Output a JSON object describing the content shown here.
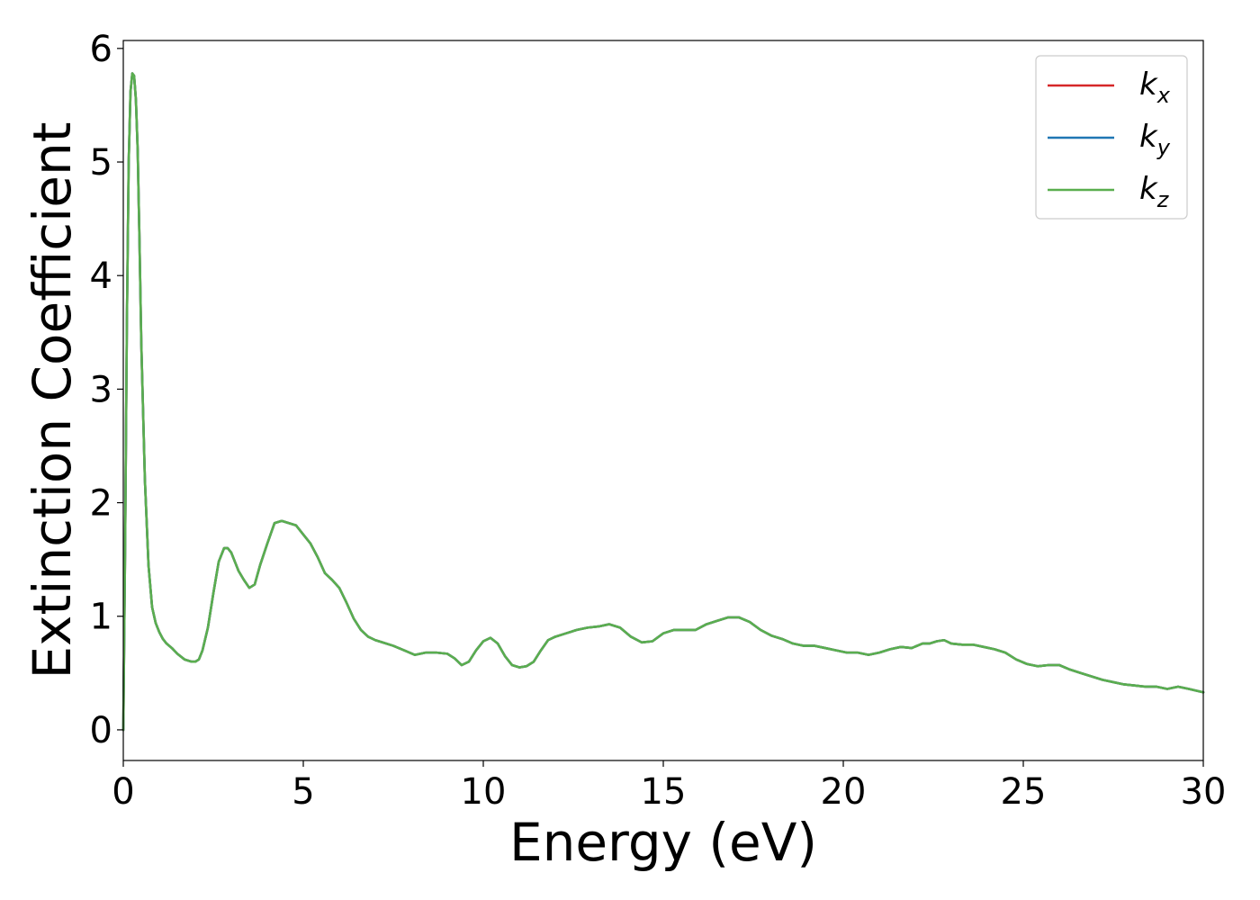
{
  "chart_data": {
    "type": "line",
    "title": "",
    "xlabel": "Energy (eV)",
    "ylabel": "Extinction Coefficient",
    "xlim": [
      0,
      30
    ],
    "ylim": [
      -0.27,
      6.07
    ],
    "x_ticks": [
      0,
      5,
      10,
      15,
      20,
      25,
      30
    ],
    "y_ticks": [
      0,
      1,
      2,
      3,
      4,
      5,
      6
    ],
    "x_tick_labels": [
      "0",
      "5",
      "10",
      "15",
      "20",
      "25",
      "30"
    ],
    "y_tick_labels": [
      "0",
      "1",
      "2",
      "3",
      "4",
      "5",
      "6"
    ],
    "grid": false,
    "legend_position": "upper-right",
    "colors": {
      "kx": "#d62728",
      "ky": "#1f77b4",
      "kz": "#5aae4f"
    },
    "x": [
      0.0,
      0.05,
      0.1,
      0.15,
      0.2,
      0.25,
      0.3,
      0.35,
      0.4,
      0.45,
      0.5,
      0.6,
      0.7,
      0.8,
      0.9,
      1.0,
      1.1,
      1.2,
      1.35,
      1.5,
      1.7,
      1.9,
      2.0,
      2.1,
      2.2,
      2.35,
      2.5,
      2.65,
      2.8,
      2.9,
      3.0,
      3.1,
      3.2,
      3.35,
      3.5,
      3.65,
      3.8,
      4.0,
      4.2,
      4.4,
      4.6,
      4.8,
      5.0,
      5.2,
      5.4,
      5.6,
      5.8,
      6.0,
      6.2,
      6.4,
      6.6,
      6.8,
      7.0,
      7.2,
      7.5,
      7.8,
      8.1,
      8.4,
      8.7,
      9.0,
      9.2,
      9.4,
      9.6,
      9.8,
      10.0,
      10.2,
      10.4,
      10.6,
      10.8,
      11.0,
      11.2,
      11.4,
      11.6,
      11.8,
      12.0,
      12.3,
      12.6,
      12.9,
      13.2,
      13.5,
      13.8,
      14.1,
      14.4,
      14.7,
      15.0,
      15.3,
      15.6,
      15.9,
      16.2,
      16.5,
      16.8,
      17.1,
      17.4,
      17.7,
      18.0,
      18.3,
      18.6,
      18.9,
      19.2,
      19.5,
      19.8,
      20.1,
      20.4,
      20.7,
      21.0,
      21.3,
      21.6,
      21.9,
      22.2,
      22.4,
      22.6,
      22.8,
      23.0,
      23.3,
      23.6,
      23.9,
      24.2,
      24.5,
      24.8,
      25.1,
      25.4,
      25.7,
      26.0,
      26.3,
      26.6,
      26.9,
      27.2,
      27.5,
      27.8,
      28.1,
      28.4,
      28.7,
      29.0,
      29.3,
      29.6,
      30.0
    ],
    "series": [
      {
        "name": "k_x",
        "values": [
          0.0,
          1.6,
          3.6,
          5.0,
          5.62,
          5.78,
          5.76,
          5.55,
          5.1,
          4.3,
          3.4,
          2.2,
          1.45,
          1.08,
          0.94,
          0.86,
          0.8,
          0.76,
          0.72,
          0.67,
          0.62,
          0.6,
          0.6,
          0.62,
          0.7,
          0.9,
          1.2,
          1.48,
          1.6,
          1.6,
          1.56,
          1.48,
          1.4,
          1.32,
          1.25,
          1.28,
          1.45,
          1.64,
          1.82,
          1.84,
          1.82,
          1.8,
          1.72,
          1.64,
          1.52,
          1.38,
          1.32,
          1.25,
          1.12,
          0.98,
          0.88,
          0.82,
          0.79,
          0.77,
          0.74,
          0.7,
          0.66,
          0.68,
          0.68,
          0.67,
          0.63,
          0.57,
          0.6,
          0.7,
          0.78,
          0.81,
          0.76,
          0.65,
          0.57,
          0.55,
          0.56,
          0.6,
          0.7,
          0.79,
          0.82,
          0.85,
          0.88,
          0.9,
          0.91,
          0.93,
          0.9,
          0.82,
          0.77,
          0.78,
          0.85,
          0.88,
          0.88,
          0.88,
          0.93,
          0.96,
          0.99,
          0.99,
          0.95,
          0.88,
          0.83,
          0.8,
          0.76,
          0.74,
          0.74,
          0.72,
          0.7,
          0.68,
          0.68,
          0.66,
          0.68,
          0.71,
          0.73,
          0.72,
          0.76,
          0.76,
          0.78,
          0.79,
          0.76,
          0.75,
          0.75,
          0.73,
          0.71,
          0.68,
          0.62,
          0.58,
          0.56,
          0.57,
          0.57,
          0.53,
          0.5,
          0.47,
          0.44,
          0.42,
          0.4,
          0.39,
          0.38,
          0.38,
          0.36,
          0.38,
          0.36,
          0.33
        ]
      },
      {
        "name": "k_y",
        "values": [
          0.0,
          1.6,
          3.6,
          5.0,
          5.62,
          5.78,
          5.76,
          5.55,
          5.1,
          4.3,
          3.4,
          2.2,
          1.45,
          1.08,
          0.94,
          0.86,
          0.8,
          0.76,
          0.72,
          0.67,
          0.62,
          0.6,
          0.6,
          0.62,
          0.7,
          0.9,
          1.2,
          1.48,
          1.6,
          1.6,
          1.56,
          1.48,
          1.4,
          1.32,
          1.25,
          1.28,
          1.45,
          1.64,
          1.82,
          1.84,
          1.82,
          1.8,
          1.72,
          1.64,
          1.52,
          1.38,
          1.32,
          1.25,
          1.12,
          0.98,
          0.88,
          0.82,
          0.79,
          0.77,
          0.74,
          0.7,
          0.66,
          0.68,
          0.68,
          0.67,
          0.63,
          0.57,
          0.6,
          0.7,
          0.78,
          0.81,
          0.76,
          0.65,
          0.57,
          0.55,
          0.56,
          0.6,
          0.7,
          0.79,
          0.82,
          0.85,
          0.88,
          0.9,
          0.91,
          0.93,
          0.9,
          0.82,
          0.77,
          0.78,
          0.85,
          0.88,
          0.88,
          0.88,
          0.93,
          0.96,
          0.99,
          0.99,
          0.95,
          0.88,
          0.83,
          0.8,
          0.76,
          0.74,
          0.74,
          0.72,
          0.7,
          0.68,
          0.68,
          0.66,
          0.68,
          0.71,
          0.73,
          0.72,
          0.76,
          0.76,
          0.78,
          0.79,
          0.76,
          0.75,
          0.75,
          0.73,
          0.71,
          0.68,
          0.62,
          0.58,
          0.56,
          0.57,
          0.57,
          0.53,
          0.5,
          0.47,
          0.44,
          0.42,
          0.4,
          0.39,
          0.38,
          0.38,
          0.36,
          0.38,
          0.36,
          0.33
        ]
      },
      {
        "name": "k_z",
        "values": [
          0.0,
          1.6,
          3.6,
          5.0,
          5.62,
          5.78,
          5.76,
          5.55,
          5.1,
          4.3,
          3.4,
          2.2,
          1.45,
          1.08,
          0.94,
          0.86,
          0.8,
          0.76,
          0.72,
          0.67,
          0.62,
          0.6,
          0.6,
          0.62,
          0.7,
          0.9,
          1.2,
          1.48,
          1.6,
          1.6,
          1.56,
          1.48,
          1.4,
          1.32,
          1.25,
          1.28,
          1.45,
          1.64,
          1.82,
          1.84,
          1.82,
          1.8,
          1.72,
          1.64,
          1.52,
          1.38,
          1.32,
          1.25,
          1.12,
          0.98,
          0.88,
          0.82,
          0.79,
          0.77,
          0.74,
          0.7,
          0.66,
          0.68,
          0.68,
          0.67,
          0.63,
          0.57,
          0.6,
          0.7,
          0.78,
          0.81,
          0.76,
          0.65,
          0.57,
          0.55,
          0.56,
          0.6,
          0.7,
          0.79,
          0.82,
          0.85,
          0.88,
          0.9,
          0.91,
          0.93,
          0.9,
          0.82,
          0.77,
          0.78,
          0.85,
          0.88,
          0.88,
          0.88,
          0.93,
          0.96,
          0.99,
          0.99,
          0.95,
          0.88,
          0.83,
          0.8,
          0.76,
          0.74,
          0.74,
          0.72,
          0.7,
          0.68,
          0.68,
          0.66,
          0.68,
          0.71,
          0.73,
          0.72,
          0.76,
          0.76,
          0.78,
          0.79,
          0.76,
          0.75,
          0.75,
          0.73,
          0.71,
          0.68,
          0.62,
          0.58,
          0.56,
          0.57,
          0.57,
          0.53,
          0.5,
          0.47,
          0.44,
          0.42,
          0.4,
          0.39,
          0.38,
          0.38,
          0.36,
          0.38,
          0.36,
          0.33
        ]
      }
    ],
    "legend": [
      {
        "series": "k_x",
        "base": "k",
        "sub": "x"
      },
      {
        "series": "k_y",
        "base": "k",
        "sub": "y"
      },
      {
        "series": "k_z",
        "base": "k",
        "sub": "z"
      }
    ]
  }
}
